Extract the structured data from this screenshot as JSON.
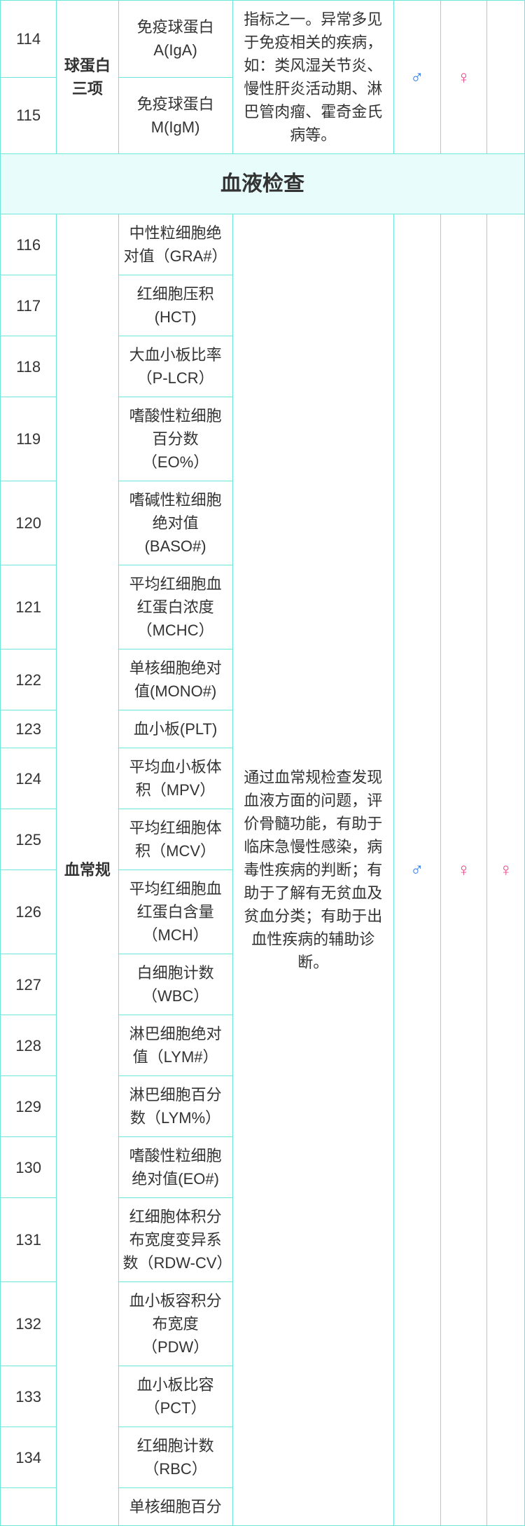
{
  "colors": {
    "border": "#6de7dc",
    "section_bg": "#e8fdfb",
    "male": "#2b7ae5",
    "female": "#e84a8a",
    "text": "#333333",
    "page_bg": "#ffffff"
  },
  "symbols": {
    "male": "♂",
    "female": "♀"
  },
  "immune": {
    "category": "球蛋白三项",
    "rows": [
      {
        "num": "114",
        "item": "免疫球蛋白A(IgA)"
      },
      {
        "num": "115",
        "item": "免疫球蛋白M(IgM)"
      }
    ],
    "desc": "指标之一。异常多见于免疫相关的疾病，如：类风湿关节炎、慢性肝炎活动期、淋巴管肉瘤、霍奇金氏病等。"
  },
  "section_title": "血液检查",
  "blood": {
    "category": "血常规",
    "rows": [
      {
        "num": "116",
        "item": "中性粒细胞绝对值（GRA#）"
      },
      {
        "num": "117",
        "item": "红细胞压积(HCT)"
      },
      {
        "num": "118",
        "item": "大血小板比率（P-LCR）"
      },
      {
        "num": "119",
        "item": "嗜酸性粒细胞百分数（EO%）"
      },
      {
        "num": "120",
        "item": "嗜碱性粒细胞绝对值(BASO#)"
      },
      {
        "num": "121",
        "item": "平均红细胞血红蛋白浓度（MCHC）"
      },
      {
        "num": "122",
        "item": "单核细胞绝对值(MONO#)"
      },
      {
        "num": "123",
        "item": "血小板(PLT)"
      },
      {
        "num": "124",
        "item": "平均血小板体积（MPV）"
      },
      {
        "num": "125",
        "item": "平均红细胞体积（MCV）"
      },
      {
        "num": "126",
        "item": "平均红细胞血红蛋白含量（MCH）"
      },
      {
        "num": "127",
        "item": "白细胞计数（WBC）"
      },
      {
        "num": "128",
        "item": "淋巴细胞绝对值（LYM#）"
      },
      {
        "num": "129",
        "item": "淋巴细胞百分数（LYM%）"
      },
      {
        "num": "130",
        "item": "嗜酸性粒细胞绝对值(EO#)"
      },
      {
        "num": "131",
        "item": "红细胞体积分布宽度变异系数（RDW-CV）"
      },
      {
        "num": "132",
        "item": "血小板容积分布宽度（PDW）"
      },
      {
        "num": "133",
        "item": "血小板比容（PCT）"
      },
      {
        "num": "134",
        "item": "红细胞计数（RBC）"
      },
      {
        "num": "",
        "item": "单核细胞百分"
      }
    ],
    "desc": "通过血常规检查发现血液方面的问题，评价骨髓功能，有助于临床急慢性感染，病毒性疾病的判断；有助于了解有无贫血及贫血分类；有助于出血性疾病的辅助诊断。"
  }
}
